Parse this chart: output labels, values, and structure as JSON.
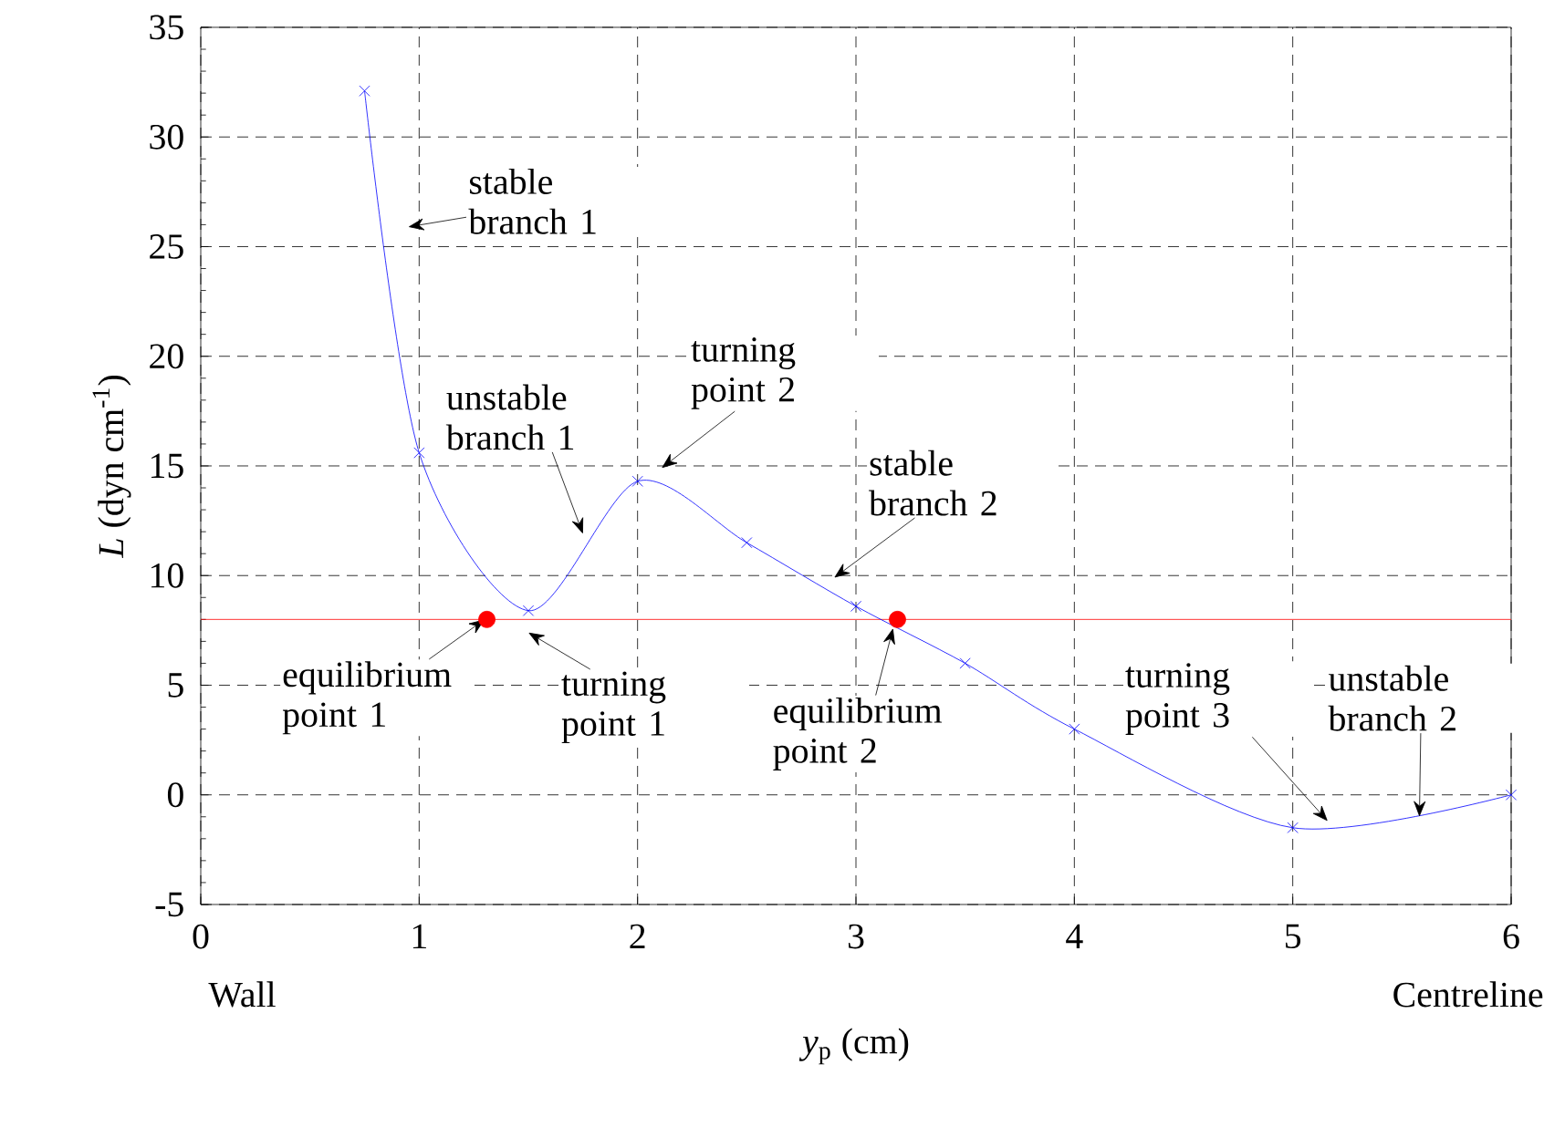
{
  "chart_data": {
    "type": "line",
    "xlabel": "*y*$_{p}$   (cm)",
    "ylabel": "*L*  (dyn cm$^{-1}$)",
    "xlim": [
      0,
      6
    ],
    "ylim": [
      -5,
      35
    ],
    "xticks": [
      0,
      1,
      2,
      3,
      4,
      5,
      6
    ],
    "yticks": [
      -5,
      0,
      5,
      10,
      15,
      20,
      25,
      30,
      35
    ],
    "grid": true,
    "series": [
      {
        "color": "#0000ff",
        "marker": "cross",
        "x": [
          0.75,
          1.0,
          1.5,
          2.0,
          2.5,
          3.0,
          3.5,
          4.0,
          5.0,
          6.0
        ],
        "values": [
          32.1,
          15.6,
          8.4,
          14.3,
          11.5,
          8.6,
          6.0,
          3.0,
          -1.5,
          0.0
        ]
      },
      {
        "type": "scatter",
        "color": "#ff0000",
        "marker": "circle",
        "x": [
          1.31,
          3.19
        ],
        "values": [
          8.0,
          8.0
        ]
      }
    ],
    "ref_lines": [
      {
        "axis": "y",
        "value": 8,
        "color": "#ff0000"
      }
    ],
    "annotations": [
      "stable branch 1",
      {
        "text": "unstable branch 1",
        "x": 1.75,
        "y": 11.9
      },
      "turning point 2",
      "stable branch 2",
      {
        "text": "equilibrium point 1",
        "x": 1.3,
        "y": 8.0
      },
      "turning point 1",
      {
        "text": "equilibrium point 2",
        "x": 3.17,
        "y": 7.6
      },
      {
        "text": "turning point 3",
        "x": 5.16,
        "y": -1.2
      },
      {
        "text": "unstable branch 2",
        "x": 5.58,
        "y": -1.0
      },
      "Wall",
      "Centreline"
    ]
  }
}
